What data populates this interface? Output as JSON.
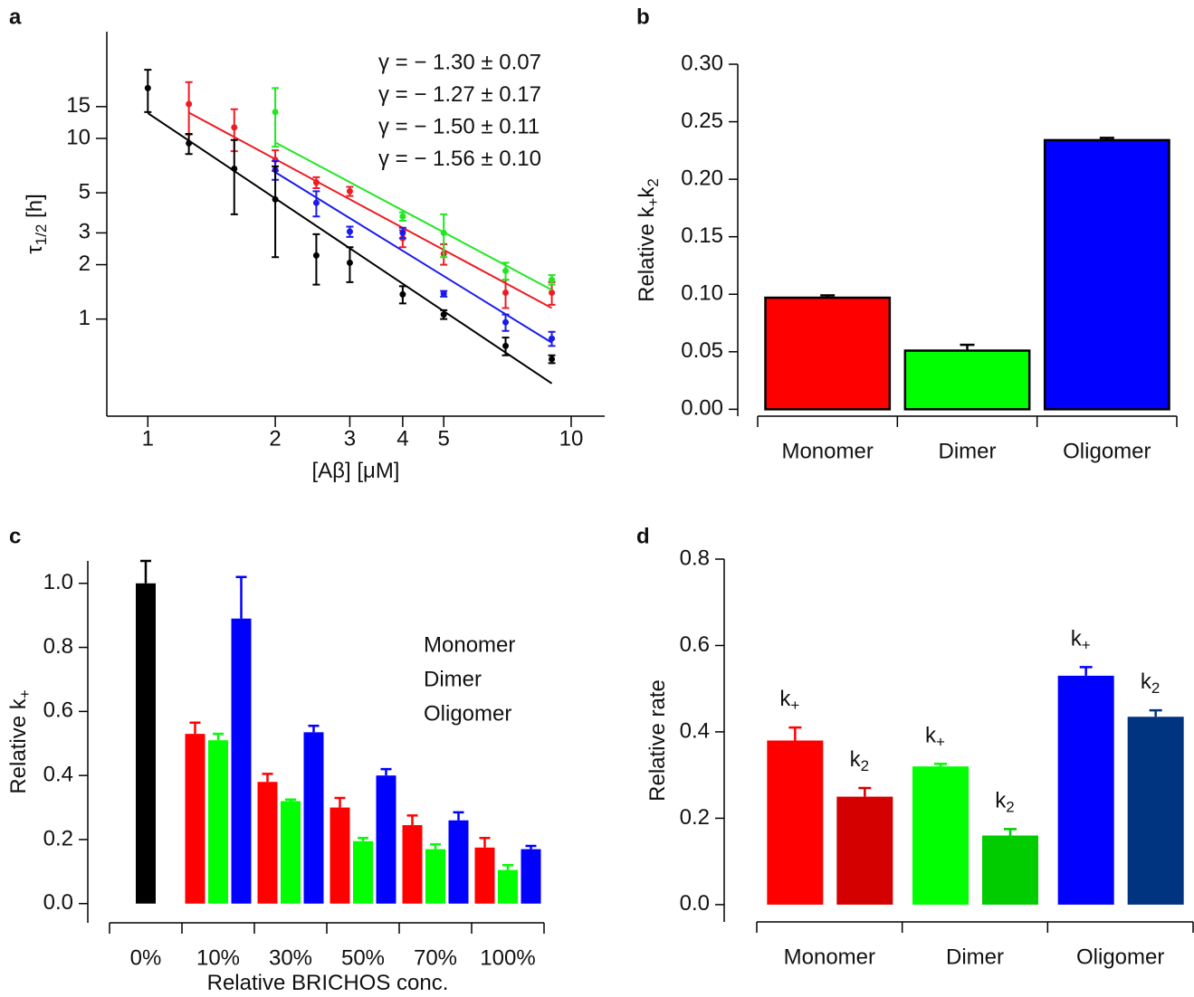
{
  "chart_data": [
    {
      "type": "scatter",
      "label": "a",
      "xscale": "log",
      "yscale": "log",
      "xlabel": [
        "[Aβ] [μM]"
      ],
      "ylabel": [
        "τ",
        "1/2",
        " [h]"
      ],
      "xlim": [
        0.8,
        12
      ],
      "ylim": [
        0.29,
        39
      ],
      "xticks": [
        1,
        2,
        3,
        4,
        5,
        10
      ],
      "yticks": [
        1,
        2,
        3,
        5,
        10,
        15
      ],
      "series": [
        {
          "name": "γ = − 1.30 ± 0.07",
          "color": "#ee1c24",
          "x": [
            1.25,
            1.6,
            2,
            2.5,
            3,
            4,
            5,
            7,
            9
          ],
          "values": [
            15.5,
            11.5,
            7.6,
            5.7,
            5.1,
            2.8,
            2.3,
            1.4,
            1.4
          ],
          "errors": [
            5,
            3,
            1,
            0.4,
            0.3,
            0.3,
            0.3,
            0.25,
            0.2
          ],
          "fit_x": [
            1.25,
            9
          ],
          "fit_y": [
            13.9,
            1.15
          ]
        },
        {
          "name": "γ = − 1.27 ± 0.17",
          "color": "#22e622",
          "x": [
            2,
            4,
            5,
            7,
            9
          ],
          "values": [
            14,
            3.7,
            3.0,
            1.85,
            1.65
          ],
          "errors": [
            5,
            0.2,
            0.8,
            0.2,
            0.1
          ],
          "fit_x": [
            2,
            9
          ],
          "fit_y": [
            9.5,
            1.45
          ]
        },
        {
          "name": "γ = − 1.50 ± 0.11",
          "color": "#1a1aee",
          "x": [
            2,
            2.5,
            3,
            4,
            5,
            7,
            9
          ],
          "values": [
            6.7,
            4.4,
            3.05,
            3.0,
            1.38,
            0.96,
            0.78
          ],
          "errors": [
            0.8,
            0.7,
            0.2,
            0.2,
            0.05,
            0.1,
            0.07
          ],
          "fit_x": [
            2,
            9
          ],
          "fit_y": [
            6.5,
            0.74
          ]
        },
        {
          "name": "γ = − 1.56 ± 0.10",
          "color": "#000000",
          "x": [
            1,
            1.25,
            1.6,
            2,
            2.5,
            3,
            4,
            5,
            7,
            9
          ],
          "values": [
            19,
            9.4,
            6.8,
            4.6,
            2.25,
            2.05,
            1.37,
            1.06,
            0.71,
            0.6
          ],
          "errors": [
            5,
            1.2,
            3,
            2.4,
            0.7,
            0.45,
            0.15,
            0.06,
            0.08,
            0.03
          ],
          "fit_x": [
            1,
            9
          ],
          "fit_y": [
            13.8,
            0.44
          ]
        }
      ]
    },
    {
      "type": "bar",
      "label": "b",
      "ylabel": [
        "Relative k",
        "+",
        "k",
        "2"
      ],
      "categories": [
        "Monomer",
        "Dimer",
        "Oligomer"
      ],
      "values": [
        0.097,
        0.051,
        0.234
      ],
      "errors": [
        0.002,
        0.005,
        0.002
      ],
      "colors": [
        "#ff0000",
        "#00ff00",
        "#0000ff"
      ],
      "ylim": [
        -0.006,
        0.3
      ],
      "yticks": [
        {
          "value": 0,
          "label": "0.00"
        },
        0.05,
        {
          "value": 0.1,
          "label": "0.10"
        },
        0.15,
        {
          "value": 0.2,
          "label": "0.20"
        },
        0.25,
        {
          "value": 0.3,
          "label": "0.30"
        }
      ]
    },
    {
      "type": "grouped_bar",
      "label": "c",
      "xlabel": [
        "Relative BRICHOS conc."
      ],
      "ylabel": [
        "Relative k",
        "+"
      ],
      "categories": [
        "0%",
        "10%",
        "30%",
        "50%",
        "70%",
        "100%"
      ],
      "control": {
        "category": 0,
        "value": 1.0,
        "error": 0.07,
        "color": "#000000"
      },
      "series": [
        {
          "name": "Monomer",
          "color": "#ff0000",
          "values": [
            null,
            0.53,
            0.38,
            0.3,
            0.245,
            0.175
          ],
          "errors": [
            null,
            0.035,
            0.025,
            0.03,
            0.03,
            0.03
          ]
        },
        {
          "name": "Dimer",
          "color": "#00ff00",
          "values": [
            null,
            0.51,
            0.32,
            0.195,
            0.17,
            0.105
          ],
          "errors": [
            null,
            0.02,
            0.005,
            0.01,
            0.015,
            0.015
          ]
        },
        {
          "name": "Oligomer",
          "color": "#0000ff",
          "values": [
            null,
            0.89,
            0.535,
            0.4,
            0.26,
            0.17
          ],
          "errors": [
            null,
            0.13,
            0.02,
            0.02,
            0.025,
            0.01
          ]
        }
      ],
      "ylim": [
        -0.06,
        1.07
      ],
      "yticks": [
        {
          "value": 0,
          "label": "0.0"
        },
        0.2,
        0.4,
        0.6,
        0.8,
        {
          "value": 1,
          "label": "1.0"
        }
      ]
    },
    {
      "type": "labeled_bar",
      "label": "d",
      "ylabel": [
        "Relative rate"
      ],
      "categories": [
        "Monomer",
        "Dimer",
        "Oligomer"
      ],
      "bars": [
        {
          "group": 0,
          "text": [
            "k",
            "+"
          ],
          "value": 0.38,
          "error": 0.03,
          "color": "#ff0000"
        },
        {
          "group": 0,
          "text": [
            "k",
            "2"
          ],
          "value": 0.25,
          "error": 0.02,
          "color": "#d40000"
        },
        {
          "group": 1,
          "text": [
            "k",
            "+"
          ],
          "value": 0.32,
          "error": 0.006,
          "color": "#00ff00"
        },
        {
          "group": 1,
          "text": [
            "k",
            "2"
          ],
          "value": 0.16,
          "error": 0.015,
          "color": "#00cc00"
        },
        {
          "group": 2,
          "text": [
            "k",
            "+"
          ],
          "value": 0.53,
          "error": 0.02,
          "color": "#0000ff"
        },
        {
          "group": 2,
          "text": [
            "k",
            "2"
          ],
          "value": 0.435,
          "error": 0.015,
          "color": "#003380"
        }
      ],
      "ylim": [
        -0.04,
        0.8
      ],
      "yticks": [
        {
          "value": 0,
          "label": "0.0"
        },
        0.2,
        0.4,
        0.6,
        0.8
      ]
    }
  ]
}
